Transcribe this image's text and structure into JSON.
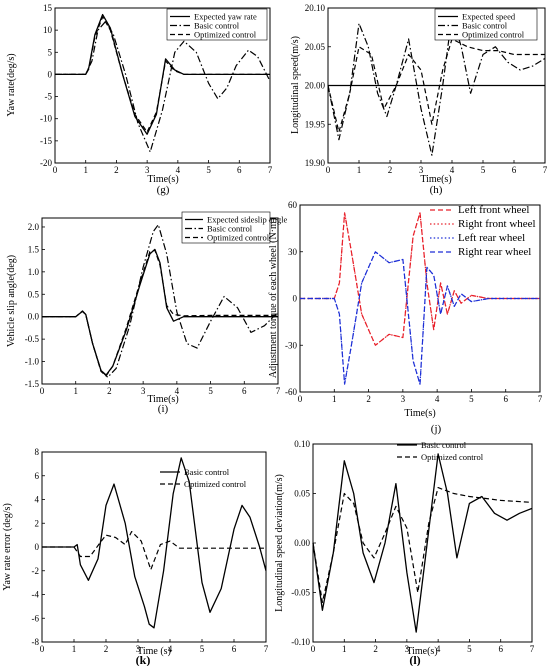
{
  "chart_data": [
    {
      "id": "g",
      "type": "line",
      "panel_label": "(g)",
      "xlabel": "Time(s)",
      "ylabel": "Yaw rate(deg/s)",
      "xlim": [
        0,
        7
      ],
      "ylim": [
        -20,
        15
      ],
      "xticks": [
        0,
        1,
        2,
        3,
        4,
        5,
        6,
        7
      ],
      "yticks": [
        -20,
        -15,
        -10,
        -5,
        0,
        5,
        10,
        15
      ],
      "legend_position": "top-right",
      "series": [
        {
          "name": "Expected yaw rate",
          "style": "solid",
          "x": [
            0,
            1.0,
            1.1,
            1.3,
            1.55,
            1.8,
            2.2,
            2.6,
            3.0,
            3.3,
            3.6,
            3.9,
            4.2,
            5.0,
            7.0
          ],
          "y": [
            0,
            0,
            1.5,
            9.0,
            13.5,
            10.5,
            0,
            -9.5,
            -13.5,
            -9.0,
            3.5,
            1.0,
            0,
            0,
            0
          ]
        },
        {
          "name": "Basic control",
          "style": "dashdot",
          "x": [
            0,
            1.0,
            1.2,
            1.4,
            1.65,
            1.9,
            2.3,
            2.7,
            3.1,
            3.5,
            3.9,
            4.2,
            4.6,
            5.0,
            5.3,
            5.6,
            5.9,
            6.3,
            6.6,
            7.0
          ],
          "y": [
            0,
            0,
            3.0,
            10.0,
            12.0,
            9.0,
            0,
            -11.0,
            -17.5,
            -8.0,
            5.0,
            7.5,
            5.0,
            -2.0,
            -5.5,
            -3.0,
            2.0,
            5.5,
            4.0,
            -1.5
          ]
        },
        {
          "name": "Optimized control",
          "style": "dashed",
          "x": [
            0,
            1.0,
            1.1,
            1.3,
            1.55,
            1.8,
            2.2,
            2.6,
            3.0,
            3.3,
            3.6,
            3.9,
            4.2,
            5.0,
            7.0
          ],
          "y": [
            0,
            0,
            1.2,
            8.5,
            13.0,
            10.0,
            0,
            -9.0,
            -13.0,
            -8.5,
            3.0,
            0.8,
            0,
            0,
            0
          ]
        }
      ]
    },
    {
      "id": "h",
      "type": "line",
      "panel_label": "(h)",
      "xlabel": "Time(s)",
      "ylabel": "Longitudinal speed(m/s)",
      "xlim": [
        0,
        7
      ],
      "ylim": [
        19.9,
        20.1
      ],
      "xticks": [
        0,
        1,
        2,
        3,
        4,
        5,
        6,
        7
      ],
      "yticks": [
        19.9,
        19.95,
        20.0,
        20.05,
        20.1
      ],
      "legend_position": "top-right",
      "series": [
        {
          "name": "Expected speed",
          "style": "solid",
          "x": [
            0,
            7
          ],
          "y": [
            20.0,
            20.0
          ]
        },
        {
          "name": "Basic control",
          "style": "dashdot",
          "x": [
            0,
            0.35,
            0.7,
            1.0,
            1.3,
            1.6,
            1.9,
            2.2,
            2.6,
            3.0,
            3.35,
            3.7,
            4.0,
            4.3,
            4.6,
            5.0,
            5.4,
            5.8,
            6.2,
            6.6,
            7.0
          ],
          "y": [
            20.0,
            19.93,
            19.99,
            20.08,
            20.05,
            19.99,
            19.96,
            20.0,
            20.06,
            19.97,
            19.91,
            20.0,
            20.09,
            20.05,
            19.99,
            20.04,
            20.05,
            20.03,
            20.02,
            20.025,
            20.035
          ]
        },
        {
          "name": "Optimized control",
          "style": "dashed",
          "x": [
            0,
            0.35,
            0.7,
            1.0,
            1.4,
            1.8,
            2.2,
            2.6,
            3.0,
            3.35,
            3.7,
            4.0,
            4.5,
            5.0,
            5.5,
            6.0,
            6.5,
            7.0
          ],
          "y": [
            20.0,
            19.94,
            19.99,
            20.05,
            20.04,
            19.97,
            20.0,
            20.04,
            20.02,
            19.95,
            20.02,
            20.06,
            20.05,
            20.045,
            20.045,
            20.04,
            20.04,
            20.04
          ]
        }
      ]
    },
    {
      "id": "i",
      "type": "line",
      "panel_label": "(i)",
      "xlabel": "Time(s)",
      "ylabel": "Vehicle slip angle(deg)",
      "xlim": [
        0,
        7
      ],
      "ylim": [
        -1.5,
        2.2
      ],
      "xticks": [
        0,
        1,
        2,
        3,
        4,
        5,
        6,
        7
      ],
      "yticks": [
        -1.5,
        -1.0,
        -0.5,
        0.0,
        0.5,
        1.0,
        1.5,
        2.0
      ],
      "legend_position": "top-right",
      "series": [
        {
          "name": "Expected sideslip angle",
          "style": "solid",
          "x": [
            0,
            1.0,
            1.2,
            1.3,
            1.5,
            1.75,
            1.9,
            2.1,
            2.5,
            2.9,
            3.2,
            3.35,
            3.5,
            3.7,
            3.9,
            4.2,
            5.0,
            7.0
          ],
          "y": [
            0,
            0,
            0.12,
            0.05,
            -0.6,
            -1.2,
            -1.3,
            -1.1,
            -0.3,
            0.7,
            1.4,
            1.5,
            1.2,
            0.2,
            -0.1,
            0,
            0,
            0
          ]
        },
        {
          "name": "Basic control",
          "style": "dashdot",
          "x": [
            0,
            1.0,
            1.2,
            1.3,
            1.5,
            1.75,
            1.95,
            2.2,
            2.6,
            3.0,
            3.3,
            3.45,
            3.7,
            4.0,
            4.3,
            4.6,
            5.0,
            5.4,
            5.8,
            6.2,
            6.6,
            7.0
          ],
          "y": [
            0,
            0,
            0.13,
            0.05,
            -0.6,
            -1.2,
            -1.35,
            -1.15,
            -0.2,
            1.1,
            1.9,
            2.05,
            1.4,
            0.1,
            -0.6,
            -0.7,
            -0.1,
            0.45,
            0.2,
            -0.35,
            -0.2,
            0.1
          ]
        },
        {
          "name": "Optimized control",
          "style": "dashed",
          "x": [
            0,
            1.0,
            1.2,
            1.3,
            1.5,
            1.75,
            1.9,
            2.1,
            2.5,
            2.9,
            3.2,
            3.35,
            3.5,
            3.7,
            3.9,
            4.2,
            5.0,
            7.0
          ],
          "y": [
            0,
            0,
            0.12,
            0.04,
            -0.6,
            -1.22,
            -1.32,
            -1.1,
            -0.25,
            0.75,
            1.45,
            1.48,
            1.15,
            0.25,
            0.05,
            0.02,
            0.03,
            0.03
          ]
        }
      ]
    },
    {
      "id": "j",
      "type": "line",
      "panel_label": "(j)",
      "xlabel": "Time(s)",
      "ylabel": "Adjustment torque of each wheel (N·m)",
      "xlim": [
        0,
        7
      ],
      "ylim": [
        -60,
        60
      ],
      "xticks": [
        0,
        1,
        2,
        3,
        4,
        5,
        6,
        7
      ],
      "yticks": [
        -60,
        -30,
        0,
        30,
        60
      ],
      "legend_position": "top-right",
      "colors": {
        "red": "#e8202a",
        "blue": "#1d2fd6"
      },
      "series": [
        {
          "name": "Left front wheel",
          "style": "dashed",
          "color": "#e8202a",
          "x": [
            0,
            1.0,
            1.15,
            1.3,
            1.5,
            1.8,
            2.2,
            2.6,
            3.0,
            3.3,
            3.5,
            3.7,
            3.9,
            4.1,
            4.3,
            4.5,
            4.7,
            5.0,
            5.5,
            6.0,
            7.0
          ],
          "y": [
            0,
            0,
            10,
            55,
            30,
            -10,
            -30,
            -23,
            -25,
            40,
            55,
            10,
            -20,
            10,
            -10,
            5,
            -3,
            2,
            0,
            0,
            0
          ]
        },
        {
          "name": "Right front wheel",
          "style": "dotted",
          "color": "#e8202a",
          "x": [
            0,
            1.0,
            1.15,
            1.3,
            1.5,
            1.8,
            2.2,
            2.6,
            3.0,
            3.3,
            3.5,
            3.7,
            3.9,
            4.1,
            4.3,
            4.5,
            4.7,
            5.0,
            5.5,
            6.0,
            7.0
          ],
          "y": [
            0,
            0,
            10,
            55,
            30,
            -10,
            -30,
            -23,
            -25,
            40,
            55,
            10,
            -20,
            10,
            -10,
            5,
            -3,
            2,
            0,
            0,
            0
          ]
        },
        {
          "name": "Left rear wheel",
          "style": "dotted",
          "color": "#1d2fd6",
          "x": [
            0,
            1.0,
            1.15,
            1.3,
            1.5,
            1.8,
            2.2,
            2.6,
            3.0,
            3.3,
            3.5,
            3.7,
            3.9,
            4.1,
            4.3,
            4.5,
            4.7,
            5.0,
            5.5,
            6.0,
            7.0
          ],
          "y": [
            0,
            0,
            -10,
            -55,
            -30,
            10,
            30,
            23,
            25,
            -40,
            -55,
            20,
            15,
            -10,
            8,
            -5,
            3,
            -2,
            0,
            0,
            0
          ]
        },
        {
          "name": "Right rear wheel",
          "style": "dashed",
          "color": "#1d2fd6",
          "x": [
            0,
            1.0,
            1.15,
            1.3,
            1.5,
            1.8,
            2.2,
            2.6,
            3.0,
            3.3,
            3.5,
            3.7,
            3.9,
            4.1,
            4.3,
            4.5,
            4.7,
            5.0,
            5.5,
            6.0,
            7.0
          ],
          "y": [
            0,
            0,
            -10,
            -55,
            -30,
            10,
            30,
            23,
            25,
            -40,
            -55,
            20,
            15,
            -10,
            8,
            -5,
            3,
            -2,
            0,
            0,
            0
          ]
        }
      ]
    },
    {
      "id": "k",
      "type": "line",
      "panel_label": "(k)",
      "xlabel": "Time (s)",
      "ylabel": "Yaw rate error (deg/s)",
      "xlim": [
        0,
        7
      ],
      "ylim": [
        -8,
        8
      ],
      "xticks": [
        0,
        1,
        2,
        3,
        4,
        5,
        6,
        7
      ],
      "yticks": [
        -8,
        -6,
        -4,
        -2,
        0,
        2,
        4,
        6,
        8
      ],
      "legend_position": "top-right",
      "series": [
        {
          "name": "Basic control",
          "style": "solid",
          "x": [
            0,
            1.0,
            1.1,
            1.2,
            1.45,
            1.75,
            2.0,
            2.25,
            2.6,
            2.9,
            3.2,
            3.35,
            3.5,
            3.8,
            4.1,
            4.35,
            4.6,
            5.0,
            5.25,
            5.6,
            6.0,
            6.25,
            6.5,
            6.8,
            7.0
          ],
          "y": [
            0,
            0,
            0.2,
            -1.5,
            -2.8,
            -1.0,
            3.5,
            5.3,
            2.0,
            -2.5,
            -5.0,
            -6.5,
            -6.8,
            -2.0,
            4.5,
            7.5,
            5.5,
            -3.0,
            -5.5,
            -3.5,
            1.5,
            3.5,
            2.5,
            0.0,
            -2.0
          ]
        },
        {
          "name": "Optimized control",
          "style": "dashed",
          "x": [
            0,
            1.0,
            1.2,
            1.5,
            1.8,
            2.0,
            2.3,
            2.6,
            2.8,
            3.1,
            3.4,
            3.7,
            4.0,
            4.3,
            4.6,
            5.0,
            6.0,
            7.0
          ],
          "y": [
            0,
            0,
            -0.8,
            -0.8,
            0.3,
            1.0,
            0.8,
            0.2,
            1.3,
            0.5,
            -1.9,
            0.2,
            0.5,
            -0.1,
            -0.1,
            -0.1,
            -0.1,
            -0.1
          ]
        }
      ]
    },
    {
      "id": "l",
      "type": "line",
      "panel_label": "(l)",
      "xlabel": "Time(s)",
      "ylabel": "Longitudinal speed deviation(m/s)",
      "xlim": [
        0,
        7
      ],
      "ylim": [
        -0.1,
        0.1
      ],
      "xticks": [
        0,
        1,
        2,
        3,
        4,
        5,
        6,
        7
      ],
      "yticks": [
        -0.1,
        -0.05,
        0.0,
        0.05,
        0.1
      ],
      "legend_position": "top-right",
      "series": [
        {
          "name": "Basic control",
          "style": "solid",
          "x": [
            0,
            0.3,
            0.65,
            1.0,
            1.3,
            1.6,
            1.95,
            2.3,
            2.65,
            3.0,
            3.3,
            3.65,
            4.0,
            4.3,
            4.6,
            5.0,
            5.4,
            5.8,
            6.2,
            6.6,
            7.0
          ],
          "y": [
            0.0,
            -0.068,
            -0.01,
            0.083,
            0.05,
            -0.01,
            -0.04,
            0.0,
            0.06,
            -0.03,
            -0.09,
            0.0,
            0.09,
            0.05,
            -0.015,
            0.04,
            0.047,
            0.03,
            0.023,
            0.03,
            0.035
          ]
        },
        {
          "name": "Optimized control",
          "style": "dashed",
          "x": [
            0,
            0.3,
            0.65,
            1.0,
            1.3,
            1.6,
            1.95,
            2.3,
            2.65,
            3.0,
            3.35,
            3.7,
            4.0,
            4.5,
            5.0,
            5.5,
            6.0,
            6.5,
            7.0
          ],
          "y": [
            0.0,
            -0.06,
            -0.01,
            0.05,
            0.04,
            0.0,
            -0.015,
            0.01,
            0.037,
            0.015,
            -0.05,
            0.02,
            0.056,
            0.05,
            0.047,
            0.045,
            0.043,
            0.042,
            0.041
          ]
        }
      ]
    }
  ]
}
